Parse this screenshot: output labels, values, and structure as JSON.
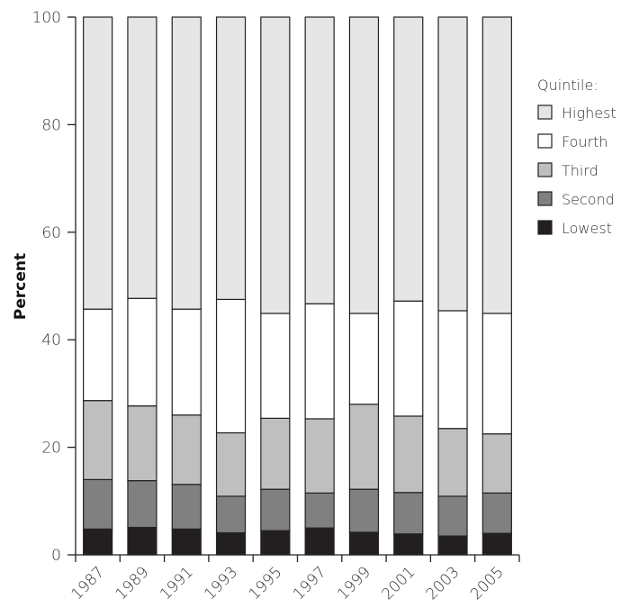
{
  "chart_data": {
    "type": "bar",
    "stacked": true,
    "categories": [
      "1987",
      "1989",
      "1991",
      "1993",
      "1995",
      "1997",
      "1999",
      "2001",
      "2003",
      "2005"
    ],
    "ylabel": "Percent",
    "ylim": [
      0,
      100
    ],
    "yticks": [
      "0",
      "20",
      "40",
      "60",
      "80",
      "100"
    ],
    "legend_title": "Quintile:",
    "legend_position": "right",
    "series": [
      {
        "name": "Lowest",
        "color": "#231f20",
        "values": [
          4.8,
          5.1,
          4.8,
          4.1,
          4.5,
          5.0,
          4.2,
          3.9,
          3.5,
          4.0
        ]
      },
      {
        "name": "Second",
        "color": "#808080",
        "values": [
          9.2,
          8.7,
          8.3,
          6.8,
          7.7,
          6.5,
          8.0,
          7.7,
          7.4,
          7.5
        ]
      },
      {
        "name": "Third",
        "color": "#bfbfbf",
        "values": [
          14.7,
          13.9,
          12.9,
          11.8,
          13.2,
          13.8,
          15.8,
          14.2,
          12.6,
          11.0
        ]
      },
      {
        "name": "Fourth",
        "color": "#ffffff",
        "values": [
          17.0,
          20.0,
          19.7,
          24.8,
          19.5,
          21.4,
          16.9,
          21.4,
          21.9,
          22.4
        ]
      },
      {
        "name": "Highest",
        "color": "#e6e6e6",
        "values": [
          54.3,
          52.3,
          54.3,
          52.5,
          55.1,
          53.3,
          55.1,
          52.8,
          54.6,
          55.1
        ]
      }
    ]
  }
}
